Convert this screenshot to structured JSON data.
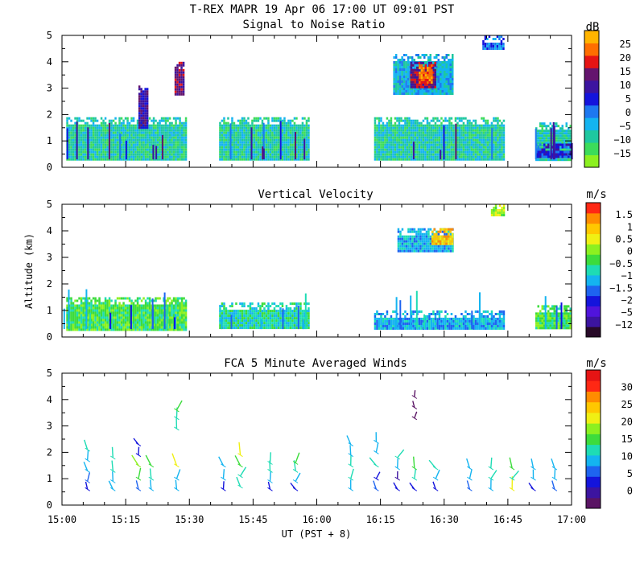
{
  "figure": {
    "title": "T-REX  MAPR 19 Apr 06  17:00 UT  09:01  PST",
    "y_axis_label": "Altitude (km)",
    "x_axis_label": "UT  (PST + 8)"
  },
  "colors": {
    "snr": [
      "#8cf020",
      "#3cdc5a",
      "#1ec8a0",
      "#14b4f0",
      "#1e78f0",
      "#1414dc",
      "#3c14a0",
      "#64146e",
      "#e61414",
      "#ff6e00",
      "#ffb400"
    ],
    "vv": [
      "#280a28",
      "#3c14a0",
      "#5014dc",
      "#1414dc",
      "#1e64f0",
      "#14b4f0",
      "#1edcb4",
      "#3cdc3c",
      "#8cf020",
      "#f0f014",
      "#ffc800",
      "#ff8c00",
      "#ff2814"
    ],
    "wind": [
      "#5a1464",
      "#3c14a0",
      "#1414dc",
      "#1e64f0",
      "#14b4f0",
      "#1edcb4",
      "#3cdc3c",
      "#8cf020",
      "#f0f014",
      "#ffc800",
      "#ff8c00",
      "#ff2814",
      "#e61414"
    ]
  },
  "chart_data": [
    {
      "type": "heatmap",
      "title": "Signal to Noise Ratio",
      "colorbar_unit": "dB",
      "colorbar_labels": [
        "25",
        "20",
        "15",
        "10",
        "5",
        "0",
        "−5",
        "−10",
        "−15"
      ],
      "x_tick_labels": [
        "15:00",
        "15:15",
        "15:30",
        "15:45",
        "16:00",
        "16:15",
        "16:30",
        "16:45",
        "17:00"
      ],
      "y_tick_labels": [
        "0",
        "1",
        "2",
        "3",
        "4",
        "5"
      ],
      "xlim": [
        0,
        120
      ],
      "ylim": [
        0,
        5
      ],
      "data_gaps_minutes": [
        [
          29.5,
          37
        ],
        [
          58,
          73.5
        ],
        [
          104,
          111
        ]
      ],
      "features": [
        {
          "t0": 1,
          "t1": 29,
          "a0": 0.3,
          "a1": 1.9,
          "level": 2
        },
        {
          "t0": 37,
          "t1": 58,
          "a0": 0.3,
          "a1": 1.9,
          "level": 2
        },
        {
          "t0": 73.5,
          "t1": 104,
          "a0": 0.3,
          "a1": 1.9,
          "level": 2
        },
        {
          "t0": 111,
          "t1": 120,
          "a0": 0.3,
          "a1": 1.7,
          "level": 2
        },
        {
          "t0": 18,
          "t1": 20,
          "a0": 1.5,
          "a1": 3.1,
          "level": 6
        },
        {
          "t0": 26.5,
          "t1": 28.5,
          "a0": 2.8,
          "a1": 4.0,
          "level": 7
        },
        {
          "t0": 78,
          "t1": 92,
          "a0": 2.8,
          "a1": 4.3,
          "level": 3
        },
        {
          "t0": 82,
          "t1": 88,
          "a0": 3.0,
          "a1": 4.0,
          "level": 7
        },
        {
          "t0": 84,
          "t1": 87,
          "a0": 3.2,
          "a1": 3.9,
          "level": 9
        },
        {
          "t0": 111,
          "t1": 120,
          "a0": 0.4,
          "a1": 0.9,
          "level": 5
        },
        {
          "t0": 99,
          "t1": 109,
          "a0": 4.5,
          "a1": 5.0,
          "level": 4
        }
      ]
    },
    {
      "type": "heatmap",
      "title": "Vertical Velocity",
      "colorbar_unit": "m/s",
      "colorbar_labels": [
        "1.5",
        "1",
        "0.5",
        "0",
        "−0.5",
        "−1",
        "−1.5",
        "−2",
        "−5",
        "−12"
      ],
      "x_tick_labels": [
        "15:00",
        "15:15",
        "15:30",
        "15:45",
        "16:00",
        "16:15",
        "16:30",
        "16:45",
        "17:00"
      ],
      "y_tick_labels": [
        "0",
        "1",
        "2",
        "3",
        "4",
        "5"
      ],
      "xlim": [
        0,
        120
      ],
      "ylim": [
        0,
        5
      ],
      "features": [
        {
          "t0": 1,
          "t1": 29,
          "a0": 0.3,
          "a1": 1.5,
          "level": 7
        },
        {
          "t0": 37,
          "t1": 58,
          "a0": 0.3,
          "a1": 1.3,
          "level": 6
        },
        {
          "t0": 73.5,
          "t1": 104,
          "a0": 0.3,
          "a1": 1.0,
          "level": 5
        },
        {
          "t0": 111,
          "t1": 120,
          "a0": 0.3,
          "a1": 1.2,
          "level": 7
        },
        {
          "t0": 79,
          "t1": 92,
          "a0": 3.2,
          "a1": 4.1,
          "level": 5
        },
        {
          "t0": 87,
          "t1": 92,
          "a0": 3.5,
          "a1": 4.1,
          "level": 10
        },
        {
          "t0": 101,
          "t1": 107,
          "a0": 4.6,
          "a1": 5.0,
          "level": 8
        }
      ]
    },
    {
      "type": "line",
      "title": "FCA 5 Minute Averaged Winds",
      "colorbar_unit": "m/s",
      "colorbar_labels": [
        "30",
        "25",
        "20",
        "15",
        "10",
        "5",
        "0"
      ],
      "x_tick_labels": [
        "15:00",
        "15:15",
        "15:30",
        "15:45",
        "16:00",
        "16:15",
        "16:30",
        "16:45",
        "17:00"
      ],
      "y_tick_labels": [
        "0",
        "1",
        "2",
        "3",
        "4",
        "5"
      ],
      "xlim": [
        0,
        120
      ],
      "ylim": [
        0,
        5
      ],
      "profiles": [
        {
          "t": 6,
          "alts": [
            0.6,
            0.9,
            1.3,
            1.7,
            2.1
          ],
          "speeds": [
            4,
            8,
            10,
            11,
            12
          ]
        },
        {
          "t": 12,
          "alts": [
            0.6,
            0.9,
            1.3,
            1.8
          ],
          "speeds": [
            9,
            11,
            12,
            13
          ]
        },
        {
          "t": 18,
          "alts": [
            0.6,
            1.0,
            1.5,
            1.9,
            2.3
          ],
          "speeds": [
            8,
            14,
            18,
            5,
            4
          ]
        },
        {
          "t": 21,
          "alts": [
            0.6,
            1.0,
            1.5
          ],
          "speeds": [
            10,
            12,
            16
          ]
        },
        {
          "t": 27,
          "alts": [
            0.6,
            1.0,
            1.5,
            2.9,
            3.3,
            3.6
          ],
          "speeds": [
            9,
            11,
            20,
            12,
            13,
            14
          ]
        },
        {
          "t": 38,
          "alts": [
            0.6,
            1.0,
            1.5
          ],
          "speeds": [
            5,
            10,
            11
          ]
        },
        {
          "t": 42,
          "alts": [
            0.7,
            1.1,
            1.5,
            1.9
          ],
          "speeds": [
            12,
            13,
            15,
            20
          ]
        },
        {
          "t": 49,
          "alts": [
            0.6,
            0.9,
            1.3,
            1.6
          ],
          "speeds": [
            4,
            11,
            12,
            13
          ]
        },
        {
          "t": 55,
          "alts": [
            0.6,
            0.9,
            1.3,
            1.6
          ],
          "speeds": [
            5,
            10,
            13,
            14
          ]
        },
        {
          "t": 68,
          "alts": [
            0.6,
            1.0,
            1.5,
            1.9,
            2.3
          ],
          "speeds": [
            10,
            12,
            13,
            11,
            10
          ]
        },
        {
          "t": 74,
          "alts": [
            0.6,
            1.0,
            1.5,
            2.0,
            2.4
          ],
          "speeds": [
            8,
            4,
            12,
            9,
            10
          ]
        },
        {
          "t": 79,
          "alts": [
            0.6,
            1.0,
            1.4,
            1.8
          ],
          "speeds": [
            4,
            3,
            10,
            12
          ]
        },
        {
          "t": 83,
          "alts": [
            0.6,
            1.0,
            1.4,
            3.3,
            3.7,
            4.1
          ],
          "speeds": [
            5,
            12,
            16,
            1,
            1,
            1
          ]
        },
        {
          "t": 88,
          "alts": [
            0.6,
            1.0,
            1.4
          ],
          "speeds": [
            5,
            10,
            12
          ]
        },
        {
          "t": 96,
          "alts": [
            0.6,
            1.0,
            1.4
          ],
          "speeds": [
            8,
            10,
            11
          ]
        },
        {
          "t": 101,
          "alts": [
            0.6,
            1.0,
            1.4
          ],
          "speeds": [
            11,
            12,
            13
          ]
        },
        {
          "t": 106,
          "alts": [
            0.6,
            1.0,
            1.4
          ],
          "speeds": [
            20,
            12,
            14
          ]
        },
        {
          "t": 111,
          "alts": [
            0.6,
            1.0,
            1.4
          ],
          "speeds": [
            4,
            9,
            10
          ]
        },
        {
          "t": 116,
          "alts": [
            0.6,
            1.0,
            1.4
          ],
          "speeds": [
            8,
            10,
            11
          ]
        }
      ]
    }
  ]
}
